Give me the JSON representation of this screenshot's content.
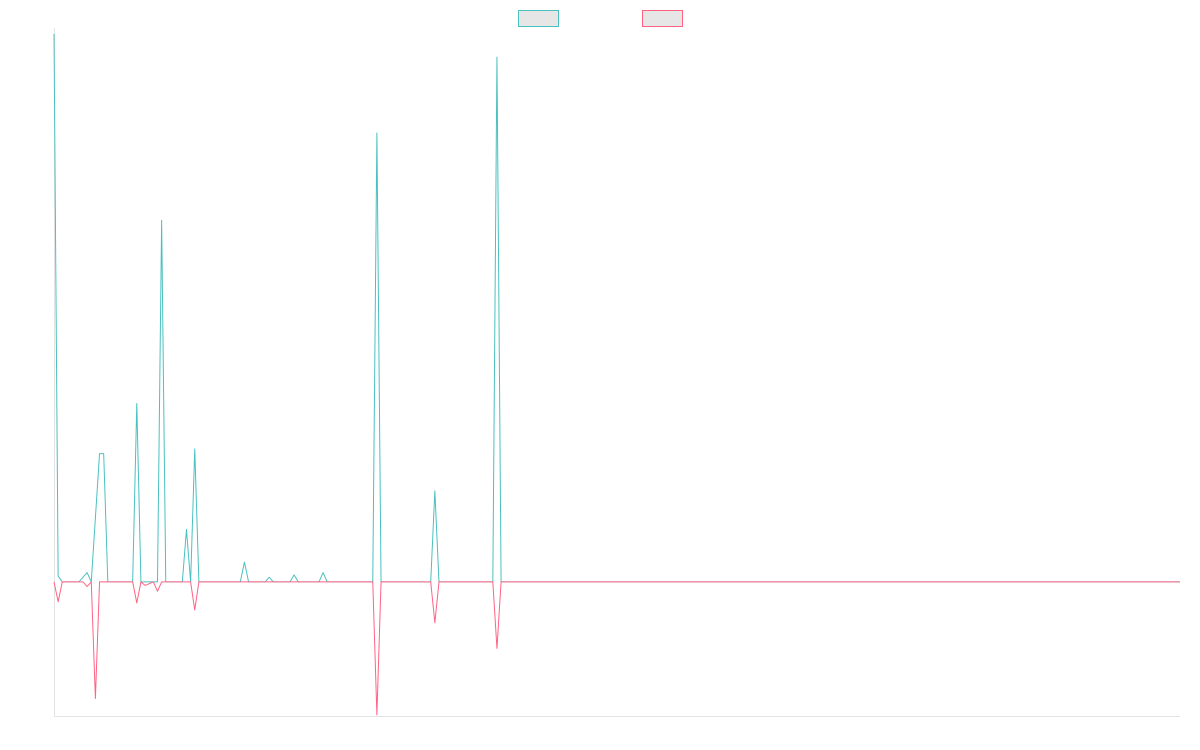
{
  "chart_data": {
    "type": "line",
    "title": "",
    "xlabel": "",
    "ylabel": "",
    "grid": false,
    "legend_position": "top-center",
    "ylim": [
      -11.5,
      47.5
    ],
    "xlim": [
      0,
      272
    ],
    "series": [
      {
        "color": "#4bc0c0",
        "fill": "#e6e6e6",
        "points": [
          [
            0,
            47
          ],
          [
            1,
            0.5
          ],
          [
            2,
            0
          ],
          [
            4,
            0
          ],
          [
            6,
            0
          ],
          [
            8,
            0.8
          ],
          [
            9,
            0
          ],
          [
            11,
            11
          ],
          [
            12,
            11
          ],
          [
            13,
            0
          ],
          [
            19,
            0
          ],
          [
            20,
            15.3
          ],
          [
            21,
            0
          ],
          [
            25,
            0
          ],
          [
            26,
            31
          ],
          [
            27,
            0
          ],
          [
            31,
            0
          ],
          [
            32,
            4.5
          ],
          [
            33,
            0
          ],
          [
            34,
            11.4
          ],
          [
            35,
            0
          ],
          [
            45,
            0
          ],
          [
            46,
            1.7
          ],
          [
            47,
            0
          ],
          [
            51,
            0
          ],
          [
            52,
            0.4
          ],
          [
            53,
            0
          ],
          [
            57,
            0
          ],
          [
            58,
            0.6
          ],
          [
            59,
            0
          ],
          [
            64,
            0
          ],
          [
            65,
            0.8
          ],
          [
            66,
            0
          ],
          [
            77,
            0
          ],
          [
            78,
            38.5
          ],
          [
            79,
            0
          ],
          [
            91,
            0
          ],
          [
            92,
            7.8
          ],
          [
            93,
            0
          ],
          [
            106,
            0
          ],
          [
            107,
            45
          ],
          [
            108,
            0
          ],
          [
            272,
            0
          ]
        ]
      },
      {
        "color": "#ff6384",
        "fill": "#e6e6e6",
        "points": [
          [
            0,
            0
          ],
          [
            1,
            -1.7
          ],
          [
            2,
            0
          ],
          [
            7,
            0
          ],
          [
            8,
            -0.4
          ],
          [
            9,
            0
          ],
          [
            10,
            -10
          ],
          [
            11,
            0
          ],
          [
            19,
            0
          ],
          [
            20,
            -1.8
          ],
          [
            21,
            0
          ],
          [
            22,
            -0.3
          ],
          [
            24,
            0
          ],
          [
            25,
            -0.8
          ],
          [
            26,
            0
          ],
          [
            33,
            0
          ],
          [
            34,
            -2.4
          ],
          [
            35,
            0
          ],
          [
            77,
            0
          ],
          [
            78,
            -11.4
          ],
          [
            79,
            0
          ],
          [
            91,
            0
          ],
          [
            92,
            -3.5
          ],
          [
            93,
            0
          ],
          [
            106,
            0
          ],
          [
            107,
            -5.7
          ],
          [
            108,
            0
          ],
          [
            272,
            0
          ]
        ]
      }
    ]
  }
}
